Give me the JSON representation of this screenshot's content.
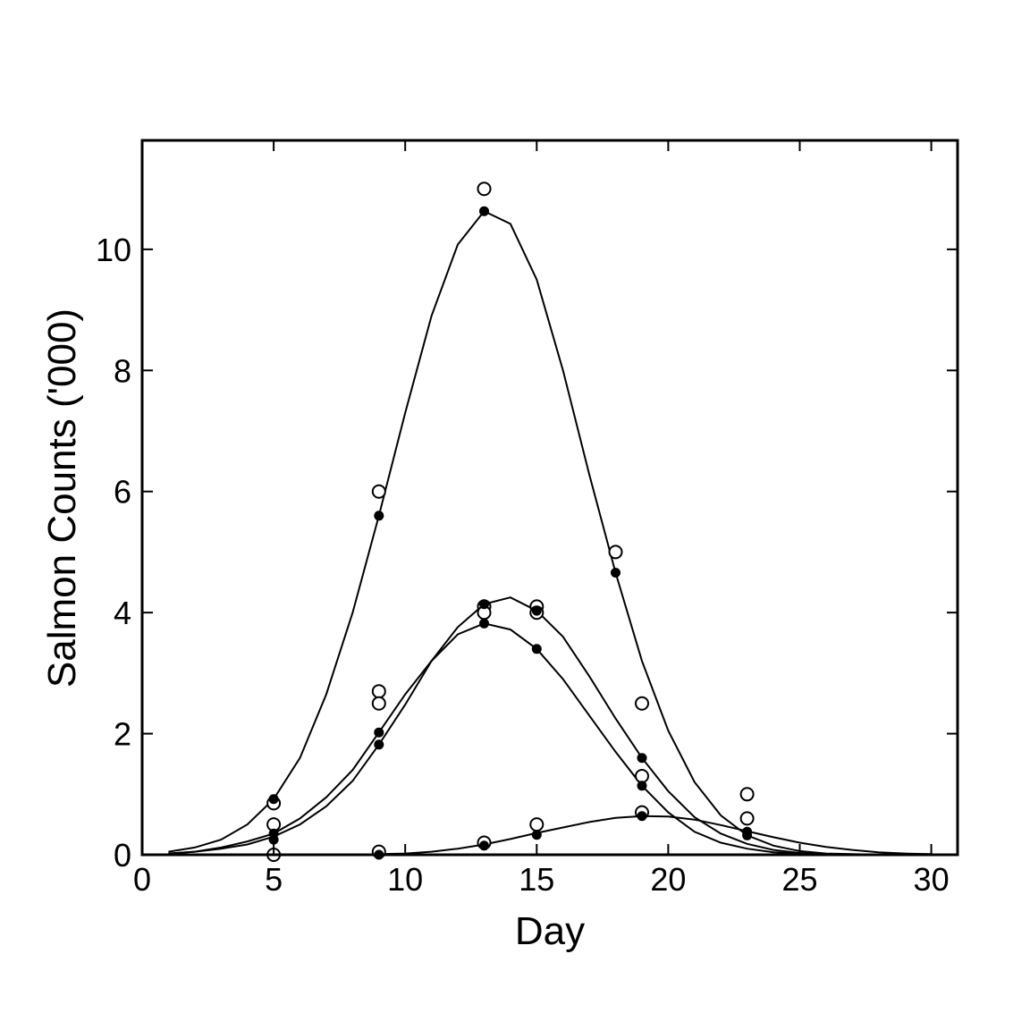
{
  "chart_data": {
    "type": "scatter",
    "title": "",
    "xlabel": "Day",
    "ylabel": "Salmon Counts ('000)",
    "xlim": [
      0,
      31
    ],
    "ylim": [
      0,
      11.8
    ],
    "xticks": [
      "0",
      "5",
      "10",
      "15",
      "20",
      "25",
      "30"
    ],
    "yticks": [
      "0",
      "2",
      "4",
      "6",
      "8",
      "10"
    ],
    "grid": false,
    "legend": "none",
    "colors": {
      "line": "#000000",
      "observed_fill": "#ffffff",
      "fitted_fill": "#000000"
    },
    "fitted_curves": [
      {
        "x": [
          1,
          2,
          3,
          4,
          5,
          6,
          7,
          8,
          9,
          10,
          11,
          12,
          13,
          14,
          15,
          16,
          17,
          18,
          19,
          20,
          21,
          22,
          23,
          24,
          25,
          26,
          27,
          28,
          29,
          30
        ],
        "y": [
          0.05,
          0.12,
          0.25,
          0.5,
          0.92,
          1.6,
          2.65,
          4.0,
          5.6,
          7.3,
          8.9,
          10.08,
          10.63,
          10.42,
          9.5,
          8.0,
          6.28,
          4.66,
          3.2,
          2.05,
          1.2,
          0.65,
          0.32,
          0.15,
          0.06,
          0.02,
          0.01,
          0.0,
          0.0,
          0.0
        ]
      },
      {
        "x": [
          1,
          2,
          3,
          4,
          5,
          6,
          7,
          8,
          9,
          10,
          11,
          12,
          13,
          14,
          15,
          16,
          17,
          18,
          19,
          20,
          21,
          22,
          23,
          24,
          25,
          26,
          27,
          28,
          29,
          30
        ],
        "y": [
          0.02,
          0.05,
          0.1,
          0.17,
          0.3,
          0.5,
          0.8,
          1.22,
          1.82,
          2.48,
          3.2,
          3.64,
          3.82,
          3.72,
          3.4,
          2.9,
          2.3,
          1.7,
          1.14,
          0.7,
          0.38,
          0.2,
          0.1,
          0.04,
          0.02,
          0.01,
          0.0,
          0.0,
          0.0,
          0.0
        ]
      },
      {
        "x": [
          1,
          2,
          3,
          4,
          5,
          6,
          7,
          8,
          9,
          10,
          11,
          12,
          13,
          14,
          15,
          16,
          17,
          18,
          19,
          20,
          21,
          22,
          23,
          24,
          25,
          26,
          27,
          28,
          29,
          30
        ],
        "y": [
          0.02,
          0.05,
          0.12,
          0.22,
          0.35,
          0.6,
          0.95,
          1.4,
          2.02,
          2.65,
          3.2,
          3.76,
          4.14,
          4.25,
          4.03,
          3.6,
          2.95,
          2.25,
          1.6,
          1.05,
          0.62,
          0.35,
          0.18,
          0.08,
          0.03,
          0.01,
          0.0,
          0.0,
          0.0,
          0.0
        ]
      },
      {
        "x": [
          1,
          2,
          3,
          4,
          5,
          6,
          7,
          8,
          9,
          10,
          11,
          12,
          13,
          14,
          15,
          16,
          17,
          18,
          19,
          20,
          21,
          22,
          23,
          24,
          25,
          26,
          27,
          28,
          29,
          30
        ],
        "y": [
          0.0,
          0.0,
          0.0,
          0.0,
          0.0,
          0.0,
          0.0,
          0.0,
          0.01,
          0.02,
          0.05,
          0.1,
          0.17,
          0.26,
          0.36,
          0.45,
          0.54,
          0.61,
          0.64,
          0.63,
          0.58,
          0.49,
          0.39,
          0.29,
          0.2,
          0.13,
          0.08,
          0.04,
          0.02,
          0.01
        ]
      }
    ],
    "observed_points": [
      {
        "x": 5,
        "y": 0.85
      },
      {
        "x": 5,
        "y": 0.5
      },
      {
        "x": 5,
        "y": 0.0
      },
      {
        "x": 9,
        "y": 6.0
      },
      {
        "x": 9,
        "y": 2.7
      },
      {
        "x": 9,
        "y": 2.5
      },
      {
        "x": 9,
        "y": 0.05
      },
      {
        "x": 13,
        "y": 11.0
      },
      {
        "x": 13,
        "y": 4.1
      },
      {
        "x": 13,
        "y": 4.0
      },
      {
        "x": 13,
        "y": 0.2
      },
      {
        "x": 15,
        "y": 4.1
      },
      {
        "x": 15,
        "y": 4.0
      },
      {
        "x": 15,
        "y": 0.5
      },
      {
        "x": 18,
        "y": 5.0
      },
      {
        "x": 19,
        "y": 2.5
      },
      {
        "x": 19,
        "y": 1.3
      },
      {
        "x": 19,
        "y": 0.7
      },
      {
        "x": 23,
        "y": 1.0
      },
      {
        "x": 23,
        "y": 0.6
      }
    ],
    "fitted_points": [
      {
        "x": 5,
        "y": 0.92
      },
      {
        "x": 5,
        "y": 0.35
      },
      {
        "x": 5,
        "y": 0.25
      },
      {
        "x": 9,
        "y": 5.6
      },
      {
        "x": 9,
        "y": 2.02
      },
      {
        "x": 9,
        "y": 1.82
      },
      {
        "x": 9,
        "y": 0.0
      },
      {
        "x": 13,
        "y": 10.63
      },
      {
        "x": 13,
        "y": 4.14
      },
      {
        "x": 13,
        "y": 3.82
      },
      {
        "x": 13,
        "y": 0.15
      },
      {
        "x": 15,
        "y": 4.03
      },
      {
        "x": 15,
        "y": 3.4
      },
      {
        "x": 15,
        "y": 0.33
      },
      {
        "x": 18,
        "y": 4.66
      },
      {
        "x": 19,
        "y": 1.6
      },
      {
        "x": 19,
        "y": 1.14
      },
      {
        "x": 19,
        "y": 0.64
      },
      {
        "x": 23,
        "y": 0.38
      },
      {
        "x": 23,
        "y": 0.32
      }
    ]
  }
}
